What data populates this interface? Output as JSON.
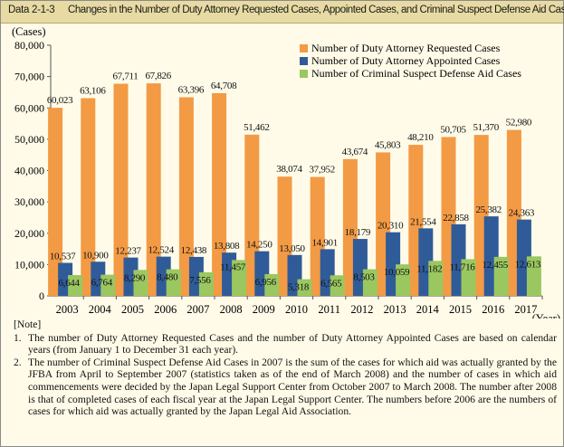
{
  "header": {
    "code": "Data 2-1-3",
    "title": "Changes in the Number of Duty Attorney Requested Cases, Appointed Cases, and Criminal Suspect Defense Aid Cases"
  },
  "chart_data": {
    "type": "bar",
    "ylabel": "(Cases)",
    "xlabel": "(Year)",
    "ylim": [
      0,
      80000
    ],
    "yticks": [
      "0",
      "10,000",
      "20,000",
      "30,000",
      "40,000",
      "50,000",
      "60,000",
      "70,000",
      "80,000"
    ],
    "categories": [
      "2003",
      "2004",
      "2005",
      "2006",
      "2007",
      "2008",
      "2009",
      "2010",
      "2011",
      "2012",
      "2013",
      "2014",
      "2015",
      "2016",
      "2017"
    ],
    "legend_position": "top-right",
    "series": [
      {
        "name": "Number of Duty Attorney Requested Cases",
        "color": "#f39a45",
        "values": [
          60023,
          63106,
          67711,
          67826,
          63396,
          64708,
          51462,
          38074,
          37952,
          43674,
          45803,
          48210,
          50705,
          51370,
          52980
        ],
        "labels": [
          "60,023",
          "63,106",
          "67,711",
          "67,826",
          "63,396",
          "64,708",
          "51,462",
          "38,074",
          "37,952",
          "43,674",
          "45,803",
          "48,210",
          "50,705",
          "51,370",
          "52,980"
        ]
      },
      {
        "name": "Number of Duty Attorney Appointed Cases",
        "color": "#2f5b99",
        "values": [
          10537,
          10900,
          12237,
          12524,
          12438,
          13808,
          14250,
          13050,
          14901,
          18179,
          20310,
          21554,
          22858,
          25382,
          24363
        ],
        "labels": [
          "10,537",
          "10,900",
          "12,237",
          "12,524",
          "12,438",
          "13,808",
          "14,250",
          "13,050",
          "14,901",
          "18,179",
          "20,310",
          "21,554",
          "22,858",
          "25,382",
          "24,363"
        ]
      },
      {
        "name": "Number of Criminal Suspect Defense Aid Cases",
        "color": "#9bc760",
        "values": [
          6644,
          6764,
          8290,
          8480,
          7556,
          11457,
          6956,
          5318,
          6565,
          8503,
          10059,
          11182,
          11716,
          12455,
          12613
        ],
        "labels": [
          "6,644",
          "6,764",
          "8,290",
          "8,480",
          "7,556",
          "11,457",
          "6,956",
          "5,318",
          "6,565",
          "8,503",
          "10,059",
          "11,182",
          "11,716",
          "12,455",
          "12,613"
        ]
      }
    ]
  },
  "notes": {
    "heading": "[Note]",
    "items": [
      {
        "num": "1.",
        "text": "The number of Duty Attorney Requested Cases and the number of Duty Attorney Appointed Cases are based on calendar years (from January 1 to December 31 each year)."
      },
      {
        "num": "2.",
        "text": "The number of Criminal Suspect Defense Aid Cases in 2007 is the sum of the cases for which aid was actually granted by the JFBA from April to September 2007 (statistics taken as of the end of March 2008) and the number of cases in which aid commencements were decided by the Japan Legal Support Center from October 2007 to March 2008.  The number after 2008 is that of completed cases of each fiscal year at the Japan Legal Support Center. The numbers before 2006 are the numbers of cases for which aid was actually granted by the Japan Legal Aid Association."
      }
    ]
  }
}
